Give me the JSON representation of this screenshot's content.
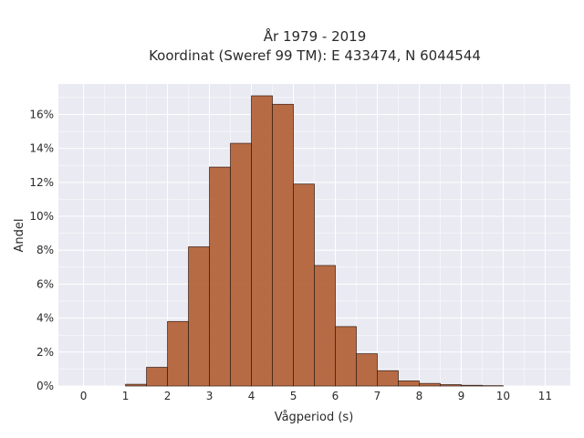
{
  "chart_data": {
    "type": "bar",
    "title": "År 1979 - 2019",
    "subtitle": "Koordinat (Sweref 99 TM): E 433474, N 6044544",
    "xlabel": "Vågperiod (s)",
    "ylabel": "Andel",
    "xlim": [
      -0.6,
      11.6
    ],
    "ylim": [
      0,
      17.8
    ],
    "x_ticks": [
      0,
      1,
      2,
      3,
      4,
      5,
      6,
      7,
      8,
      9,
      10,
      11
    ],
    "y_ticks": [
      0,
      2,
      4,
      6,
      8,
      10,
      12,
      14,
      16
    ],
    "y_tick_labels": [
      "0%",
      "2%",
      "4%",
      "6%",
      "8%",
      "10%",
      "12%",
      "14%",
      "16%"
    ],
    "bin_width": 0.5,
    "bins_start": [
      1.0,
      1.5,
      2.0,
      2.5,
      3.0,
      3.5,
      4.0,
      4.5,
      5.0,
      5.5,
      6.0,
      6.5,
      7.0,
      7.5,
      8.0,
      8.5,
      9.0,
      9.5
    ],
    "values": [
      0.1,
      1.1,
      3.8,
      8.2,
      12.9,
      14.3,
      17.1,
      16.6,
      11.9,
      7.1,
      3.5,
      1.9,
      0.9,
      0.3,
      0.15,
      0.08,
      0.04,
      0.02
    ],
    "grid": true,
    "colors": {
      "bar_fill": "#b5653b",
      "bar_edge": "#3d2215",
      "plot_background": "#eaeaf2",
      "grid": "#ffffff"
    }
  }
}
